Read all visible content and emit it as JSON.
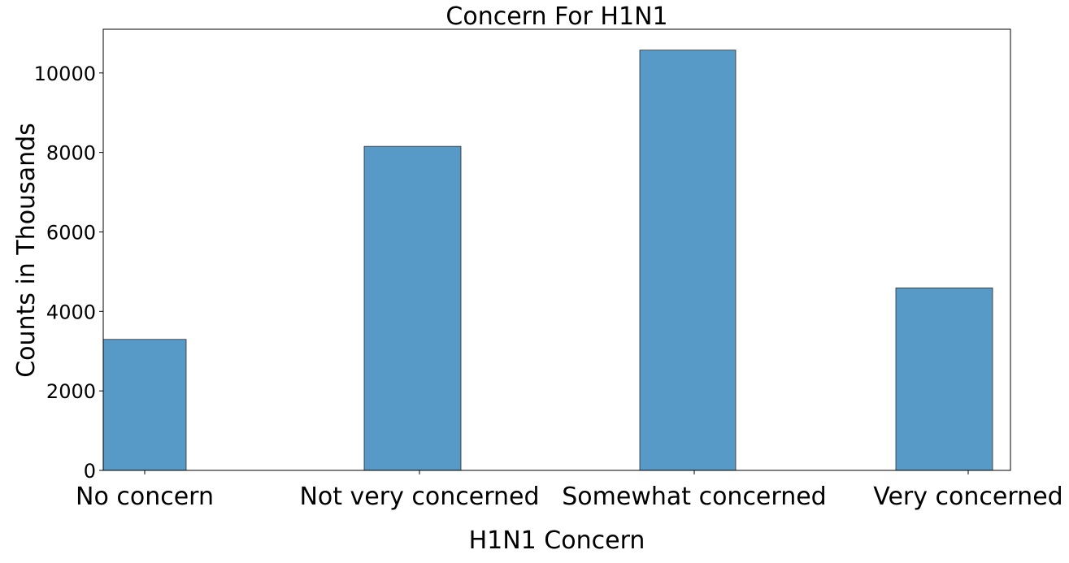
{
  "chart_data": {
    "type": "bar",
    "title": "Concern For H1N1",
    "xlabel": "H1N1 Concern",
    "ylabel": "Counts in Thousands",
    "categories": [
      "No concern",
      "Not very concerned",
      "Somewhat concerned",
      "Very concerned"
    ],
    "values": [
      3296,
      8153,
      10575,
      4591
    ],
    "ylim": [
      0,
      11100
    ],
    "yticks": [
      0,
      2000,
      4000,
      6000,
      8000,
      10000
    ],
    "grid": false,
    "legend": "none",
    "bar_color": "#5799c7",
    "bar_edge_color": "#2b2b2b"
  }
}
